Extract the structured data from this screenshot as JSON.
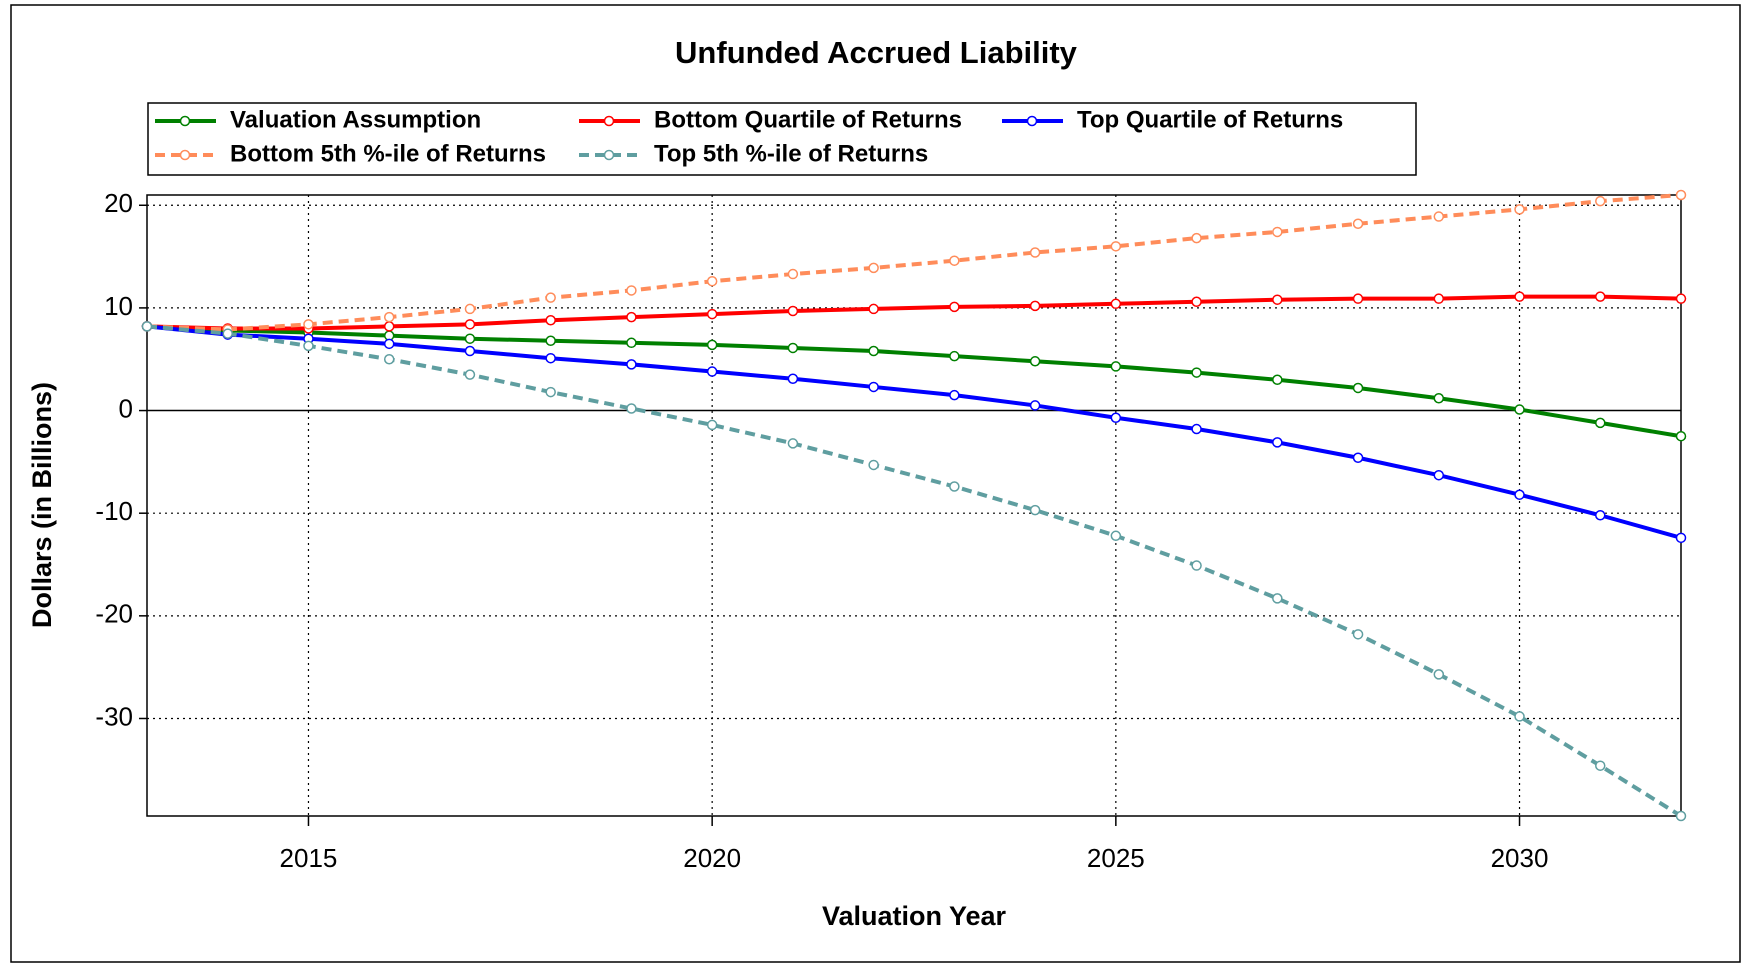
{
  "chart_data": {
    "type": "line",
    "title": "Unfunded Accrued Liability",
    "x_label": "Valuation Year",
    "y_label": "Dollars (in Billions)",
    "x": [
      2013,
      2014,
      2015,
      2016,
      2017,
      2018,
      2019,
      2020,
      2021,
      2022,
      2023,
      2024,
      2025,
      2026,
      2027,
      2028,
      2029,
      2030,
      2031,
      2032
    ],
    "series": [
      {
        "name": "Valuation Assumption",
        "color": "#008000",
        "dashed": false,
        "values": [
          8.2,
          7.8,
          7.6,
          7.3,
          7.0,
          6.8,
          6.6,
          6.4,
          6.1,
          5.8,
          5.3,
          4.8,
          4.3,
          3.7,
          3.0,
          2.2,
          1.2,
          0.1,
          -1.2,
          -2.5
        ]
      },
      {
        "name": "Bottom Quartile of Returns",
        "color": "#ff0000",
        "dashed": false,
        "values": [
          8.2,
          8.0,
          8.0,
          8.2,
          8.4,
          8.8,
          9.1,
          9.4,
          9.7,
          9.9,
          10.1,
          10.2,
          10.4,
          10.6,
          10.8,
          10.9,
          10.9,
          11.1,
          11.1,
          10.9
        ]
      },
      {
        "name": "Top Quartile of Returns",
        "color": "#0000ff",
        "dashed": false,
        "values": [
          8.2,
          7.4,
          7.0,
          6.5,
          5.8,
          5.1,
          4.5,
          3.8,
          3.1,
          2.3,
          1.5,
          0.5,
          -0.7,
          -1.8,
          -3.1,
          -4.6,
          -6.3,
          -8.2,
          -10.2,
          -12.4
        ]
      },
      {
        "name": "Bottom 5th %-ile of Returns",
        "color": "#ff8c5a",
        "dashed": true,
        "values": [
          8.2,
          7.9,
          8.4,
          9.1,
          9.9,
          11.0,
          11.7,
          12.6,
          13.3,
          13.9,
          14.6,
          15.4,
          16.0,
          16.8,
          17.4,
          18.2,
          18.9,
          19.6,
          20.4,
          21.0
        ]
      },
      {
        "name": "Top 5th %-ile of Returns",
        "color": "#5f9ea0",
        "dashed": true,
        "values": [
          8.2,
          7.5,
          6.3,
          5.0,
          3.5,
          1.8,
          0.2,
          -1.4,
          -3.2,
          -5.3,
          -7.4,
          -9.7,
          -12.2,
          -15.1,
          -18.3,
          -21.8,
          -25.7,
          -29.8,
          -34.6,
          -39.5
        ]
      }
    ],
    "xlim": [
      2013,
      2032
    ],
    "xticks": [
      2015,
      2020,
      2025,
      2030
    ],
    "ylim": [
      -39.5,
      21
    ],
    "yticks": [
      20,
      10,
      0,
      -10,
      -20,
      -30
    ],
    "grid": true,
    "legend": "top"
  }
}
